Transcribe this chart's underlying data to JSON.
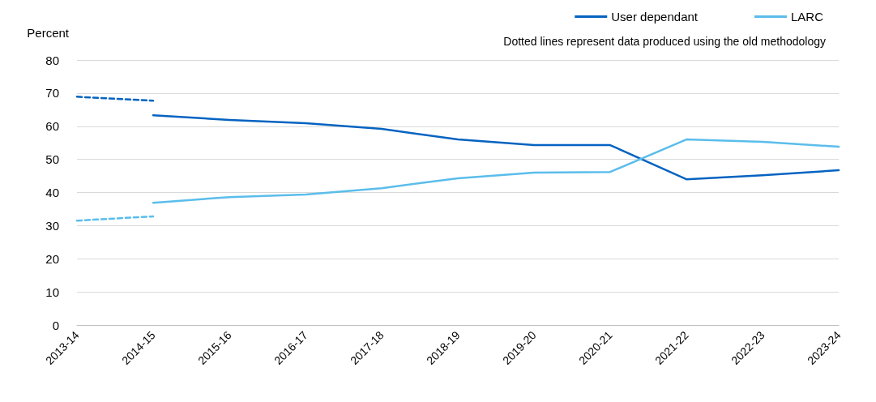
{
  "chart_data": {
    "type": "line",
    "ylabel": "Percent",
    "categories": [
      "2013-14",
      "2014-15",
      "2015-16",
      "2016-17",
      "2017-18",
      "2018-19",
      "2019-20",
      "2020-21",
      "2021-22",
      "2022-23",
      "2023-24"
    ],
    "series": [
      {
        "name": "User dependant",
        "color": "#0563c1",
        "line_style": "solid",
        "values": [
          null,
          63.3,
          61.9,
          60.9,
          59.2,
          56.0,
          54.3,
          54.3,
          44.0,
          45.2,
          46.7
        ]
      },
      {
        "name": "LARC",
        "color": "#5bbdeb",
        "line_style": "solid",
        "values": [
          null,
          36.9,
          38.6,
          39.4,
          41.3,
          44.3,
          46.0,
          46.2,
          56.0,
          55.3,
          53.8
        ]
      },
      {
        "color": "#0563c1",
        "line_style": "dashed",
        "values": [
          68.9,
          67.7,
          null,
          null,
          null,
          null,
          null,
          null,
          null,
          null,
          null
        ]
      },
      {
        "color": "#5bbdeb",
        "line_style": "dashed",
        "values": [
          31.5,
          32.8,
          null,
          null,
          null,
          null,
          null,
          null,
          null,
          null,
          null
        ]
      }
    ],
    "ylim": [
      0,
      80
    ],
    "yticks": [
      0,
      10,
      20,
      30,
      40,
      50,
      60,
      70,
      80
    ],
    "grid": "y",
    "legend": "top right",
    "marker": "none",
    "annotations": [
      "Dotted lines represent data produced using the old methodology"
    ]
  }
}
